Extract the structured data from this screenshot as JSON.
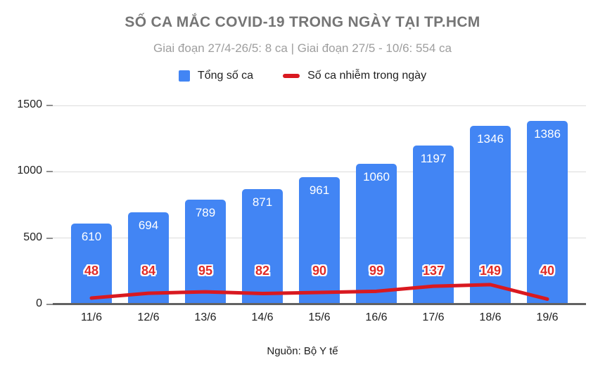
{
  "header": {
    "title": "SỐ CA MẮC COVID-19 TRONG NGÀY TẠI TP.HCM",
    "subtitle": "Giai đoạn 27/4-26/5: 8 ca | Giai đoạn 27/5 - 10/6: 554 ca"
  },
  "chart_data": {
    "type": "bar",
    "title": "SỐ CA MẮC COVID-19 TRONG NGÀY TẠI TP.HCM",
    "subtitle": "Giai đoạn 27/4-26/5: 8 ca | Giai đoạn 27/5 - 10/6: 554 ca",
    "categories": [
      "11/6",
      "12/6",
      "13/6",
      "14/6",
      "15/6",
      "16/6",
      "17/6",
      "18/6",
      "19/6"
    ],
    "series": [
      {
        "name": "Tổng số ca",
        "type": "bar",
        "color": "#4285f4",
        "label_color": "#ffffff",
        "values": [
          610,
          694,
          789,
          871,
          961,
          1060,
          1197,
          1346,
          1386
        ]
      },
      {
        "name": "Số ca nhiễm trong ngày",
        "type": "line",
        "color": "#d91920",
        "label_color": "#e12b26",
        "values": [
          48,
          84,
          95,
          82,
          90,
          99,
          137,
          149,
          40
        ]
      }
    ],
    "xlabel": "",
    "ylabel": "",
    "ylim": [
      0,
      1500
    ],
    "yticks": [
      0,
      500,
      1000,
      1500
    ],
    "grid": true,
    "legend_position": "top"
  },
  "footer": {
    "source": "Nguồn: Bộ Y tế"
  }
}
